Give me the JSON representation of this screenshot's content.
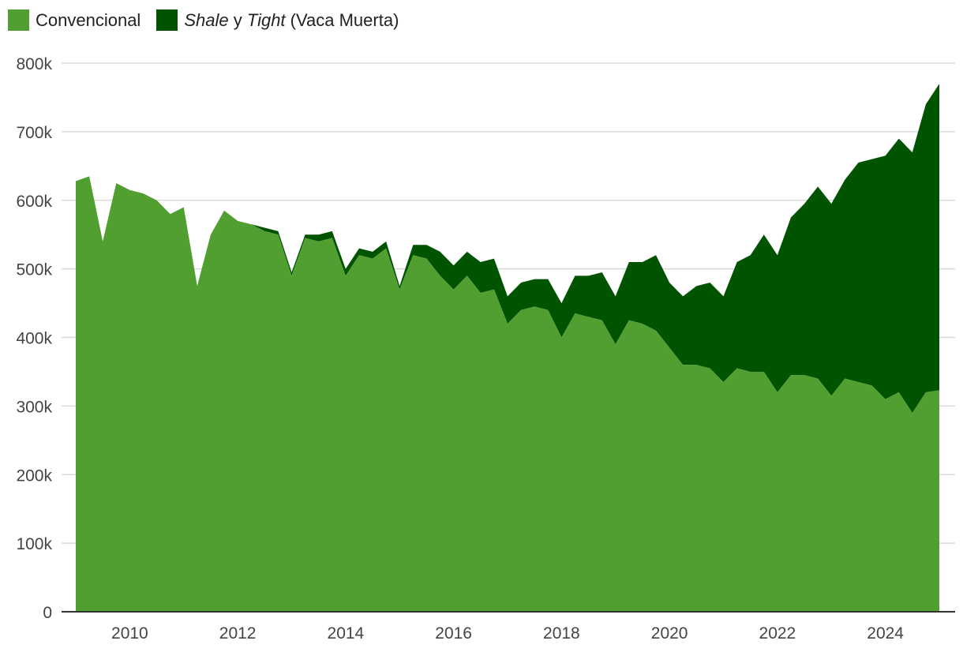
{
  "chart_data": {
    "type": "area",
    "stacked": true,
    "legend_position": "top-left",
    "grid": true,
    "ylim": [
      0,
      800000
    ],
    "y_ticks": [
      0,
      100000,
      200000,
      300000,
      400000,
      500000,
      600000,
      700000,
      800000
    ],
    "y_tick_labels": [
      "0",
      "100k",
      "200k",
      "300k",
      "400k",
      "500k",
      "600k",
      "700k",
      "800k"
    ],
    "xlim": [
      2009.0,
      2025.0
    ],
    "x_ticks": [
      2010,
      2012,
      2014,
      2016,
      2018,
      2020,
      2022,
      2024
    ],
    "x_tick_labels": [
      "2010",
      "2012",
      "2014",
      "2016",
      "2018",
      "2020",
      "2022",
      "2024"
    ],
    "legend": {
      "conventional": "Convencional",
      "shale_pre": "Shale",
      "shale_mid": " y ",
      "shale_tight": "Tight",
      "shale_post": " (Vaca Muerta)"
    },
    "colors": {
      "conventional": "#519E31",
      "shale_tight": "#005400",
      "grid": "#d9d9d9",
      "axis": "#333333"
    },
    "x": [
      2009.0,
      2009.25,
      2009.5,
      2009.75,
      2010.0,
      2010.25,
      2010.5,
      2010.75,
      2011.0,
      2011.25,
      2011.5,
      2011.75,
      2012.0,
      2012.25,
      2012.5,
      2012.75,
      2013.0,
      2013.25,
      2013.5,
      2013.75,
      2014.0,
      2014.25,
      2014.5,
      2014.75,
      2015.0,
      2015.25,
      2015.5,
      2015.75,
      2016.0,
      2016.25,
      2016.5,
      2016.75,
      2017.0,
      2017.25,
      2017.5,
      2017.75,
      2018.0,
      2018.25,
      2018.5,
      2018.75,
      2019.0,
      2019.25,
      2019.5,
      2019.75,
      2020.0,
      2020.25,
      2020.5,
      2020.75,
      2021.0,
      2021.25,
      2021.5,
      2021.75,
      2022.0,
      2022.25,
      2022.5,
      2022.75,
      2023.0,
      2023.25,
      2023.5,
      2023.75,
      2024.0,
      2024.25,
      2024.5,
      2024.75,
      2025.0
    ],
    "series": [
      {
        "name": "Convencional",
        "values": [
          628000,
          635000,
          540000,
          625000,
          615000,
          610000,
          600000,
          580000,
          590000,
          475000,
          550000,
          585000,
          570000,
          565000,
          555000,
          550000,
          490000,
          545000,
          540000,
          545000,
          490000,
          520000,
          515000,
          530000,
          470000,
          520000,
          515000,
          490000,
          470000,
          490000,
          465000,
          470000,
          420000,
          440000,
          445000,
          440000,
          400000,
          435000,
          430000,
          425000,
          390000,
          425000,
          420000,
          410000,
          385000,
          360000,
          360000,
          355000,
          335000,
          355000,
          350000,
          350000,
          320000,
          345000,
          345000,
          340000,
          315000,
          340000,
          335000,
          330000,
          310000,
          320000,
          290000,
          320000,
          323000
        ]
      },
      {
        "name": "Shale y Tight (Vaca Muerta)",
        "values": [
          0,
          0,
          0,
          0,
          0,
          0,
          0,
          0,
          0,
          0,
          0,
          0,
          0,
          0,
          5000,
          5000,
          5000,
          5000,
          10000,
          10000,
          10000,
          10000,
          10000,
          10000,
          5000,
          15000,
          20000,
          35000,
          35000,
          35000,
          45000,
          45000,
          40000,
          40000,
          40000,
          45000,
          50000,
          55000,
          60000,
          70000,
          70000,
          85000,
          90000,
          110000,
          95000,
          100000,
          115000,
          125000,
          125000,
          155000,
          170000,
          200000,
          200000,
          230000,
          250000,
          280000,
          280000,
          290000,
          320000,
          330000,
          355000,
          370000,
          380000,
          420000,
          447000
        ]
      }
    ]
  }
}
